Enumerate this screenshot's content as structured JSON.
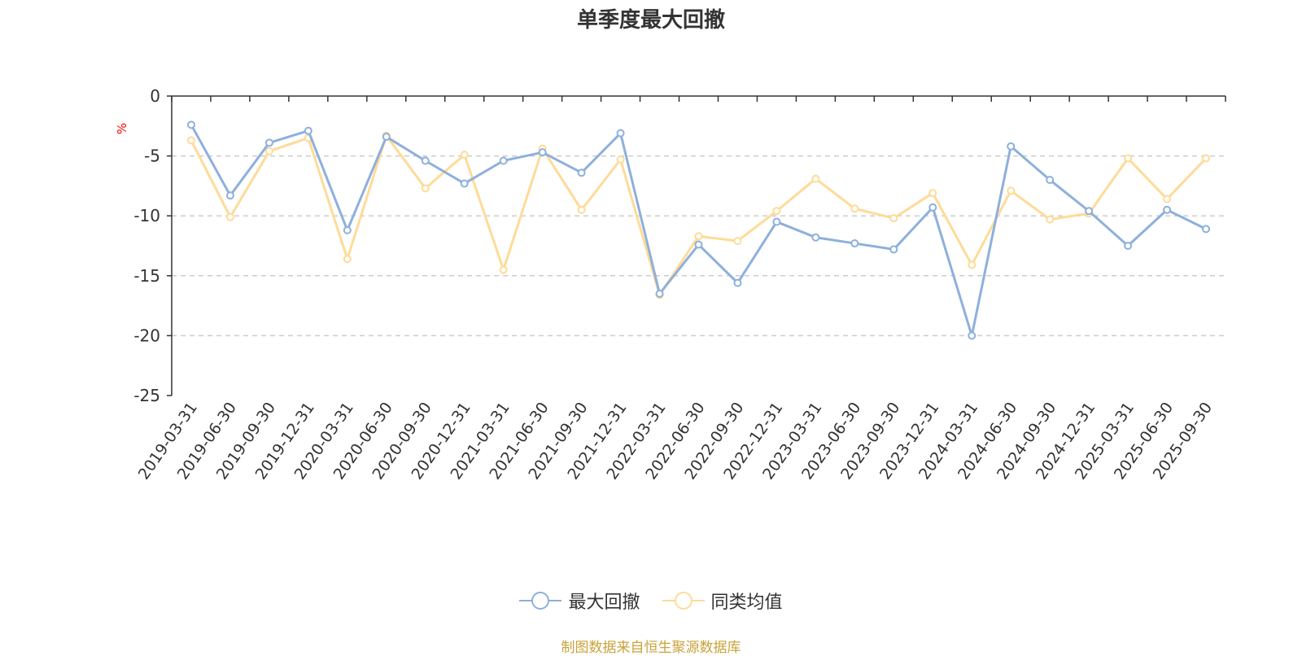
{
  "chart_title": "单季度最大回撤",
  "source_text": "制图数据来自恒生聚源数据库",
  "colors": {
    "series_1": "#8eb0dc",
    "series_2": "#fedb98",
    "source_text": "#c9a33a",
    "ylabel": "#ff0000",
    "axis": "#333333",
    "grid": "#cccccc"
  },
  "chart_data": {
    "type": "line",
    "title": "单季度最大回撤",
    "xlabel": "",
    "ylabel": "%",
    "ylim": [
      -25,
      0
    ],
    "yticks": [
      0,
      -5,
      -10,
      -15,
      -20,
      -25
    ],
    "grid": "horizontal dashed",
    "legend_position": "bottom",
    "categories": [
      "2019-03-31",
      "2019-06-30",
      "2019-09-30",
      "2019-12-31",
      "2020-03-31",
      "2020-06-30",
      "2020-09-30",
      "2020-12-31",
      "2021-03-31",
      "2021-06-30",
      "2021-09-30",
      "2021-12-31",
      "2022-03-31",
      "2022-06-30",
      "2022-09-30",
      "2022-12-31",
      "2023-03-31",
      "2023-06-30",
      "2023-09-30",
      "2023-12-31",
      "2024-03-31",
      "2024-06-30",
      "2024-09-30",
      "2024-12-31",
      "2025-03-31",
      "2025-06-30",
      "2025-09-30"
    ],
    "series": [
      {
        "name": "最大回撤",
        "values": [
          -2.4,
          -8.3,
          -3.9,
          -2.9,
          -11.2,
          -3.4,
          -5.4,
          -7.3,
          -5.4,
          -4.7,
          -6.4,
          -3.1,
          -16.5,
          -12.4,
          -15.6,
          -10.5,
          -11.8,
          -12.3,
          -12.8,
          -9.3,
          -20.0,
          -4.2,
          -7.0,
          -9.6,
          -12.5,
          -9.5,
          -11.1
        ]
      },
      {
        "name": "同类均值",
        "values": [
          -3.7,
          -10.1,
          -4.6,
          -3.5,
          -13.6,
          -3.3,
          -7.7,
          -4.9,
          -14.5,
          -4.4,
          -9.5,
          -5.3,
          -16.6,
          -11.7,
          -12.1,
          -9.6,
          -6.9,
          -9.4,
          -10.2,
          -8.1,
          -14.1,
          -7.9,
          -10.3,
          -9.8,
          -5.2,
          -8.6,
          -5.2
        ]
      }
    ]
  }
}
